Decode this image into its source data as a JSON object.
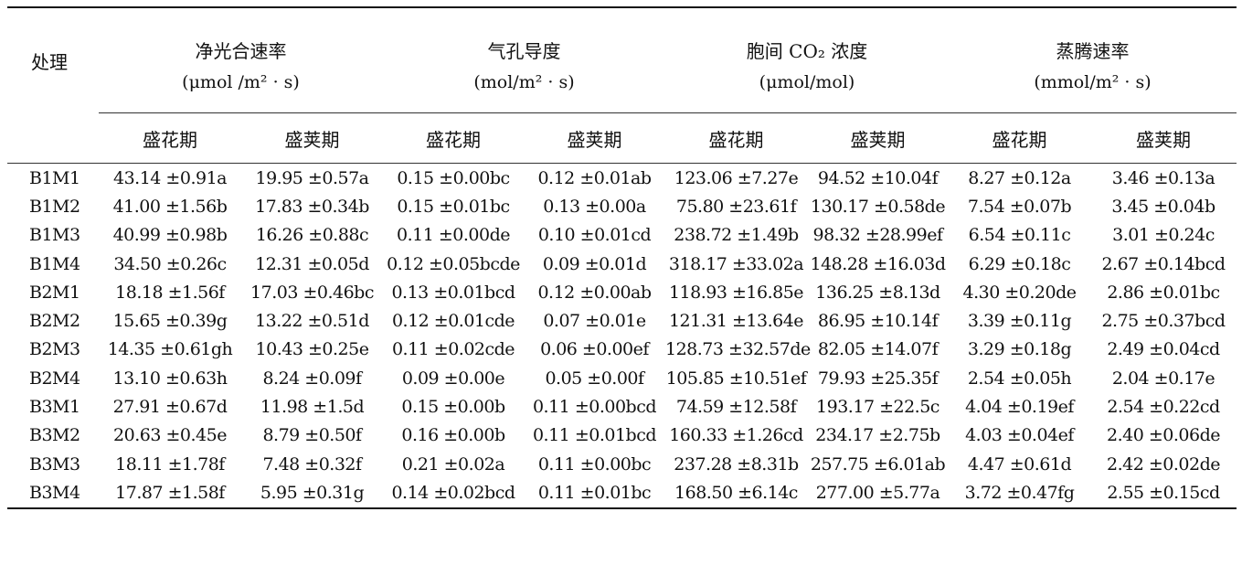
{
  "table": {
    "treatment_header": "处理",
    "groups": [
      {
        "title": "净光合速率",
        "unit": "(μmol /m² · s)"
      },
      {
        "title": "气孔导度",
        "unit": "(mol/m² · s)"
      },
      {
        "title": "胞间 CO₂ 浓度",
        "unit": "(μmol/mol)"
      },
      {
        "title": "蒸腾速率",
        "unit": "(mmol/m² · s)"
      }
    ],
    "sub_headers": [
      "盛花期",
      "盛荚期",
      "盛花期",
      "盛荚期",
      "盛花期",
      "盛荚期",
      "盛花期",
      "盛荚期"
    ],
    "rows": [
      {
        "label": "B1M1",
        "values": [
          "43.14 ±0.91a",
          "19.95 ±0.57a",
          "0.15 ±0.00bc",
          "0.12 ±0.01ab",
          "123.06 ±7.27e",
          "94.52 ±10.04f",
          "8.27 ±0.12a",
          "3.46 ±0.13a"
        ]
      },
      {
        "label": "B1M2",
        "values": [
          "41.00 ±1.56b",
          "17.83 ±0.34b",
          "0.15 ±0.01bc",
          "0.13 ±0.00a",
          "75.80 ±23.61f",
          "130.17 ±0.58de",
          "7.54 ±0.07b",
          "3.45 ±0.04b"
        ]
      },
      {
        "label": "B1M3",
        "values": [
          "40.99 ±0.98b",
          "16.26 ±0.88c",
          "0.11 ±0.00de",
          "0.10 ±0.01cd",
          "238.72 ±1.49b",
          "98.32 ±28.99ef",
          "6.54 ±0.11c",
          "3.01 ±0.24c"
        ]
      },
      {
        "label": "B1M4",
        "values": [
          "34.50 ±0.26c",
          "12.31 ±0.05d",
          "0.12 ±0.05bcde",
          "0.09 ±0.01d",
          "318.17 ±33.02a",
          "148.28 ±16.03d",
          "6.29 ±0.18c",
          "2.67 ±0.14bcd"
        ]
      },
      {
        "label": "B2M1",
        "values": [
          "18.18 ±1.56f",
          "17.03 ±0.46bc",
          "0.13 ±0.01bcd",
          "0.12 ±0.00ab",
          "118.93 ±16.85e",
          "136.25 ±8.13d",
          "4.30 ±0.20de",
          "2.86 ±0.01bc"
        ]
      },
      {
        "label": "B2M2",
        "values": [
          "15.65 ±0.39g",
          "13.22 ±0.51d",
          "0.12 ±0.01cde",
          "0.07 ±0.01e",
          "121.31 ±13.64e",
          "86.95 ±10.14f",
          "3.39 ±0.11g",
          "2.75 ±0.37bcd"
        ]
      },
      {
        "label": "B2M3",
        "values": [
          "14.35 ±0.61gh",
          "10.43 ±0.25e",
          "0.11 ±0.02cde",
          "0.06 ±0.00ef",
          "128.73 ±32.57de",
          "82.05 ±14.07f",
          "3.29 ±0.18g",
          "2.49 ±0.04cd"
        ]
      },
      {
        "label": "B2M4",
        "values": [
          "13.10 ±0.63h",
          "8.24 ±0.09f",
          "0.09 ±0.00e",
          "0.05 ±0.00f",
          "105.85 ±10.51ef",
          "79.93 ±25.35f",
          "2.54 ±0.05h",
          "2.04 ±0.17e"
        ]
      },
      {
        "label": "B3M1",
        "values": [
          "27.91 ±0.67d",
          "11.98 ±1.5d",
          "0.15 ±0.00b",
          "0.11 ±0.00bcd",
          "74.59 ±12.58f",
          "193.17 ±22.5c",
          "4.04 ±0.19ef",
          "2.54 ±0.22cd"
        ]
      },
      {
        "label": "B3M2",
        "values": [
          "20.63 ±0.45e",
          "8.79 ±0.50f",
          "0.16 ±0.00b",
          "0.11 ±0.01bcd",
          "160.33 ±1.26cd",
          "234.17 ±2.75b",
          "4.03 ±0.04ef",
          "2.40 ±0.06de"
        ]
      },
      {
        "label": "B3M3",
        "values": [
          "18.11 ±1.78f",
          "7.48 ±0.32f",
          "0.21 ±0.02a",
          "0.11 ±0.00bc",
          "237.28 ±8.31b",
          "257.75 ±6.01ab",
          "4.47 ±0.61d",
          "2.42 ±0.02de"
        ]
      },
      {
        "label": "B3M4",
        "values": [
          "17.87 ±1.58f",
          "5.95 ±0.31g",
          "0.14 ±0.02bcd",
          "0.11 ±0.01bc",
          "168.50 ±6.14c",
          "277.00 ±5.77a",
          "3.72 ±0.47fg",
          "2.55 ±0.15cd"
        ]
      }
    ]
  }
}
